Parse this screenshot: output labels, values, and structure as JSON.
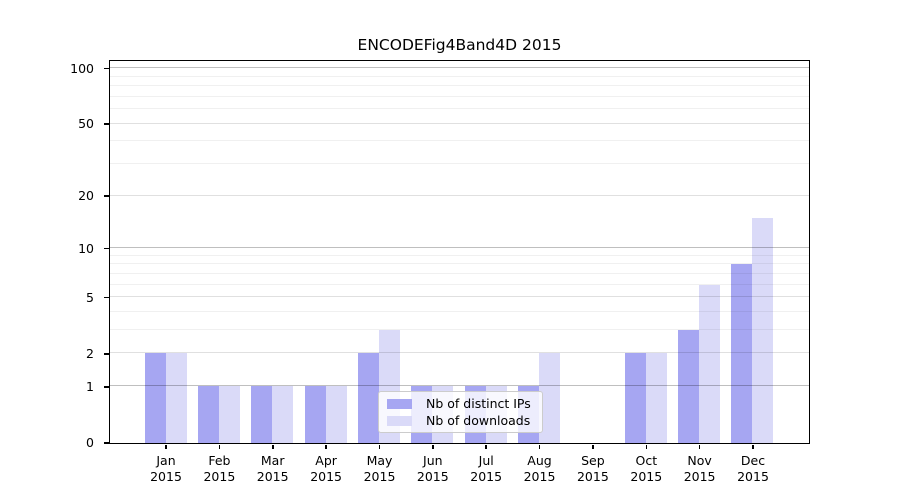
{
  "title": "ENCODEFig4Band4D 2015",
  "chart_data": {
    "type": "bar",
    "title": "ENCODEFig4Band4D 2015",
    "categories": [
      "Jan 2015",
      "Feb 2015",
      "Mar 2015",
      "Apr 2015",
      "May 2015",
      "Jun 2015",
      "Jul 2015",
      "Aug 2015",
      "Sep 2015",
      "Oct 2015",
      "Nov 2015",
      "Dec 2015"
    ],
    "x_tick_months": [
      "Jan",
      "Feb",
      "Mar",
      "Apr",
      "May",
      "Jun",
      "Jul",
      "Aug",
      "Sep",
      "Oct",
      "Nov",
      "Dec"
    ],
    "x_tick_year": "2015",
    "series": [
      {
        "name": "Nb of distinct IPs",
        "color": "#a6a6f2",
        "values": [
          2,
          1,
          1,
          1,
          2,
          1,
          1,
          1,
          0,
          2,
          3,
          8
        ]
      },
      {
        "name": "Nb of downloads",
        "color": "#dadaf8",
        "values": [
          2,
          1,
          1,
          1,
          3,
          1,
          1,
          2,
          0,
          2,
          6,
          15
        ]
      }
    ],
    "yscale": "log1p",
    "ylim": [
      0,
      110
    ],
    "y_tick_labels": [
      "0",
      "1",
      "2",
      "5",
      "10",
      "20",
      "50",
      "100"
    ],
    "y_ticks": [
      0,
      1,
      2,
      5,
      10,
      20,
      50,
      100
    ],
    "y_decade_ticks": [
      1,
      10,
      100
    ],
    "y_minor_gridlines": [
      3,
      4,
      6,
      7,
      8,
      9,
      30,
      40,
      60,
      70,
      80,
      90
    ],
    "grid": true,
    "legend_position": "lower-center-inside",
    "xlabel": "",
    "ylabel": ""
  },
  "colors": {
    "grid_decade": "rgba(0,0,0,0.25)",
    "grid_labeled": "rgba(0,0,0,0.12)",
    "grid_minor": "rgba(0,0,0,0.06)",
    "axis": "#000000",
    "legend_border": "#cccccc",
    "legend_background": "rgba(255,255,255,0.8)"
  }
}
